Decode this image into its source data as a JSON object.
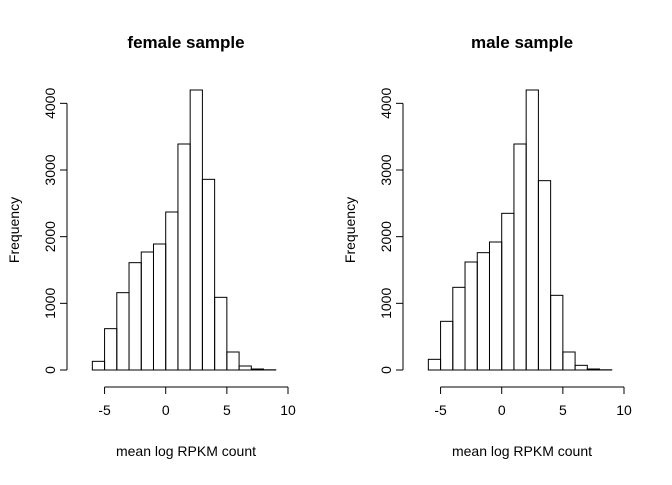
{
  "chart_data": [
    {
      "type": "bar",
      "subtype": "histogram",
      "title": "female sample",
      "xlabel": "mean log RPKM count",
      "ylabel": "Frequency",
      "xlim": [
        -7.5,
        10
      ],
      "ylim": [
        0,
        4200
      ],
      "xticks": [
        -5,
        0,
        5,
        10
      ],
      "yticks": [
        0,
        1000,
        2000,
        3000,
        4000
      ],
      "bins": [
        {
          "from": -6,
          "to": -5,
          "value": 130
        },
        {
          "from": -5,
          "to": -4,
          "value": 620
        },
        {
          "from": -4,
          "to": -3,
          "value": 1160
        },
        {
          "from": -3,
          "to": -2,
          "value": 1610
        },
        {
          "from": -2,
          "to": -1,
          "value": 1770
        },
        {
          "from": -1,
          "to": 0,
          "value": 1890
        },
        {
          "from": 0,
          "to": 1,
          "value": 2370
        },
        {
          "from": 1,
          "to": 2,
          "value": 3390
        },
        {
          "from": 2,
          "to": 3,
          "value": 4200
        },
        {
          "from": 3,
          "to": 4,
          "value": 2860
        },
        {
          "from": 4,
          "to": 5,
          "value": 1090
        },
        {
          "from": 5,
          "to": 6,
          "value": 270
        },
        {
          "from": 6,
          "to": 7,
          "value": 60
        },
        {
          "from": 7,
          "to": 8,
          "value": 15
        },
        {
          "from": 8,
          "to": 9,
          "value": 3
        }
      ]
    },
    {
      "type": "bar",
      "subtype": "histogram",
      "title": "male sample",
      "xlabel": "mean log RPKM count",
      "ylabel": "Frequency",
      "xlim": [
        -7.5,
        10
      ],
      "ylim": [
        0,
        4200
      ],
      "xticks": [
        -5,
        0,
        5,
        10
      ],
      "yticks": [
        0,
        1000,
        2000,
        3000,
        4000
      ],
      "bins": [
        {
          "from": -6,
          "to": -5,
          "value": 160
        },
        {
          "from": -5,
          "to": -4,
          "value": 730
        },
        {
          "from": -4,
          "to": -3,
          "value": 1240
        },
        {
          "from": -3,
          "to": -2,
          "value": 1620
        },
        {
          "from": -2,
          "to": -1,
          "value": 1760
        },
        {
          "from": -1,
          "to": 0,
          "value": 1920
        },
        {
          "from": 0,
          "to": 1,
          "value": 2350
        },
        {
          "from": 1,
          "to": 2,
          "value": 3390
        },
        {
          "from": 2,
          "to": 3,
          "value": 4200
        },
        {
          "from": 3,
          "to": 4,
          "value": 2840
        },
        {
          "from": 4,
          "to": 5,
          "value": 1120
        },
        {
          "from": 5,
          "to": 6,
          "value": 270
        },
        {
          "from": 6,
          "to": 7,
          "value": 70
        },
        {
          "from": 7,
          "to": 8,
          "value": 15
        },
        {
          "from": 8,
          "to": 9,
          "value": 3
        }
      ]
    }
  ]
}
